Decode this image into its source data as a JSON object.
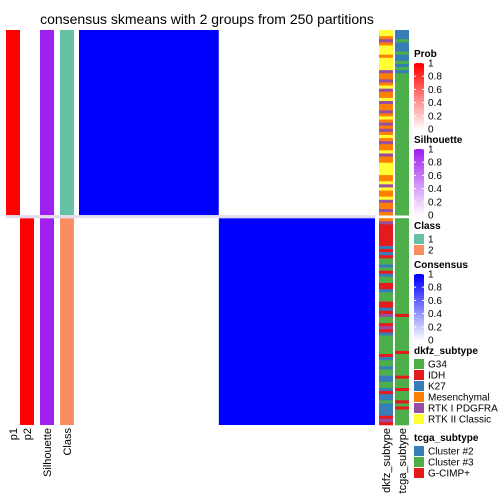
{
  "chart_data": {
    "type": "heatmap",
    "title": "consensus skmeans with 2 groups from 250 partitions",
    "group_sizes": [
      60,
      67
    ],
    "columns": {
      "p1": "p1",
      "p2": "p2",
      "silhouette": "Silhouette",
      "class": "Class",
      "dkfz": "dkfz_subtype",
      "tcga": "tcga_subtype"
    },
    "annotations": {
      "p1_by_group": [
        1,
        0
      ],
      "p2_by_group": [
        0,
        1
      ],
      "silhouette_by_group": [
        1,
        1
      ],
      "class_by_group": [
        1,
        2
      ],
      "consensus_within": 1,
      "consensus_between": 0,
      "dkfz_subtype": [
        "RTK II Classic",
        "RTK II Classic",
        "Mesenchymal",
        "RTK I PDGFRA",
        "Mesenchymal",
        "RTK II Classic",
        "RTK II Classic",
        "RTK II Classic",
        "Mesenchymal",
        "RTK II Classic",
        "RTK II Classic",
        "RTK II Classic",
        "RTK II Classic",
        "RTK I PDGFRA",
        "Mesenchymal",
        "Mesenchymal",
        "RTK I PDGFRA",
        "Mesenchymal",
        "RTK II Classic",
        "RTK I PDGFRA",
        "Mesenchymal",
        "Mesenchymal",
        "RTK II Classic",
        "RTK I PDGFRA",
        "Mesenchymal",
        "Mesenchymal",
        "RTK I PDGFRA",
        "Mesenchymal",
        "RTK II Classic",
        "Mesenchymal",
        "RTK I PDGFRA",
        "Mesenchymal",
        "RTK I PDGFRA",
        "Mesenchymal",
        "RTK II Classic",
        "Mesenchymal",
        "RTK I PDGFRA",
        "Mesenchymal",
        "Mesenchymal",
        "RTK II Classic",
        "RTK I PDGFRA",
        "Mesenchymal",
        "Mesenchymal",
        "RTK II Classic",
        "RTK II Classic",
        "RTK II Classic",
        "RTK II Classic",
        "Mesenchymal",
        "Mesenchymal",
        "RTK II Classic",
        "RTK I PDGFRA",
        "RTK II Classic",
        "Mesenchymal",
        "Mesenchymal",
        "RTK II Classic",
        "RTK I PDGFRA",
        "Mesenchymal",
        "Mesenchymal",
        "RTK I PDGFRA",
        "Mesenchymal",
        "Mesenchymal",
        "RTK I PDGFRA",
        "IDH",
        "IDH",
        "IDH",
        "IDH",
        "IDH",
        "IDH",
        "IDH",
        "K27",
        "IDH",
        "K27",
        "IDH",
        "G34",
        "G34",
        "K27",
        "G34",
        "IDH",
        "K27",
        "G34",
        "G34",
        "IDH",
        "IDH",
        "K27",
        "G34",
        "G34",
        "G34",
        "IDH",
        "IDH",
        "K27",
        "IDH",
        "RTK I PDGFRA",
        "G34",
        "G34",
        "IDH",
        "RTK I PDGFRA",
        "IDH",
        "K27",
        "G34",
        "G34",
        "G34",
        "G34",
        "G34",
        "G34",
        "IDH",
        "K27",
        "G34",
        "G34",
        "K27",
        "G34",
        "G34",
        "K27",
        "K27",
        "G34",
        "G34",
        "K27",
        "IDH",
        "K27",
        "K27",
        "G34",
        "K27",
        "K27",
        "K27",
        "K27",
        "IDH",
        "RTK I PDGFRA",
        "IDH"
      ],
      "tcga_subtype": [
        "Cluster #2",
        "Cluster #2",
        "Cluster #2",
        "Cluster #3",
        "Cluster #2",
        "Cluster #2",
        "Cluster #2",
        "Cluster #3",
        "Cluster #2",
        "Cluster #2",
        "Cluster #3",
        "Cluster #2",
        "Cluster #3",
        "Cluster #2",
        "Cluster #3",
        "Cluster #3",
        "Cluster #3",
        "Cluster #3",
        "Cluster #3",
        "Cluster #3",
        "Cluster #3",
        "Cluster #3",
        "Cluster #3",
        "Cluster #3",
        "Cluster #3",
        "Cluster #3",
        "Cluster #3",
        "Cluster #3",
        "Cluster #3",
        "Cluster #3",
        "Cluster #3",
        "Cluster #3",
        "Cluster #3",
        "Cluster #3",
        "Cluster #3",
        "Cluster #3",
        "Cluster #3",
        "Cluster #3",
        "Cluster #3",
        "Cluster #3",
        "Cluster #3",
        "Cluster #3",
        "Cluster #3",
        "Cluster #3",
        "Cluster #3",
        "Cluster #3",
        "Cluster #3",
        "Cluster #3",
        "Cluster #3",
        "Cluster #3",
        "Cluster #3",
        "Cluster #3",
        "Cluster #3",
        "Cluster #3",
        "Cluster #3",
        "Cluster #3",
        "Cluster #3",
        "Cluster #3",
        "Cluster #3",
        "Cluster #3",
        "Cluster #3",
        "Cluster #3",
        "Cluster #3",
        "Cluster #3",
        "Cluster #3",
        "Cluster #3",
        "Cluster #3",
        "Cluster #3",
        "Cluster #3",
        "Cluster #3",
        "Cluster #3",
        "Cluster #3",
        "Cluster #3",
        "Cluster #3",
        "Cluster #3",
        "Cluster #3",
        "Cluster #3",
        "Cluster #3",
        "Cluster #3",
        "Cluster #3",
        "Cluster #3",
        "Cluster #3",
        "Cluster #3",
        "Cluster #3",
        "Cluster #3",
        "Cluster #3",
        "Cluster #3",
        "Cluster #3",
        "Cluster #3",
        "Cluster #3",
        "Cluster #3",
        "G-CIMP+",
        "Cluster #3",
        "Cluster #3",
        "Cluster #3",
        "Cluster #3",
        "Cluster #3",
        "Cluster #3",
        "Cluster #3",
        "Cluster #3",
        "Cluster #3",
        "Cluster #3",
        "Cluster #3",
        "G-CIMP+",
        "Cluster #3",
        "Cluster #3",
        "Cluster #3",
        "Cluster #3",
        "Cluster #3",
        "Cluster #3",
        "Cluster #3",
        "G-CIMP+",
        "Cluster #3",
        "Cluster #3",
        "Cluster #3",
        "G-CIMP+",
        "Cluster #3",
        "Cluster #3",
        "Cluster #3",
        "G-CIMP+",
        "Cluster #3",
        "G-CIMP+",
        "Cluster #3",
        "Cluster #3",
        "Cluster #3",
        "Cluster #3",
        "Cluster #3"
      ]
    },
    "legends": [
      {
        "title": "Prob",
        "type": "continuous",
        "ticks": [
          "1",
          "0.8",
          "0.6",
          "0.4",
          "0.2",
          "0"
        ],
        "colors": [
          "#ff0000",
          "#ffffff"
        ]
      },
      {
        "title": "Silhouette",
        "type": "continuous",
        "ticks": [
          "1",
          "0.8",
          "0.6",
          "0.4",
          "0.2",
          "0"
        ],
        "colors": [
          "#a020f0",
          "#ffffff"
        ]
      },
      {
        "title": "Class",
        "type": "discrete",
        "items": [
          {
            "label": "1",
            "color": "#66c2a5"
          },
          {
            "label": "2",
            "color": "#fc8d62"
          }
        ]
      },
      {
        "title": "Consensus",
        "type": "continuous",
        "ticks": [
          "1",
          "0.8",
          "0.6",
          "0.4",
          "0.2",
          "0"
        ],
        "colors": [
          "#0000ff",
          "#ffffff"
        ]
      },
      {
        "title": "dkfz_subtype",
        "type": "discrete",
        "items": [
          {
            "label": "G34",
            "color": "#4daf4a"
          },
          {
            "label": "IDH",
            "color": "#e41a1c"
          },
          {
            "label": "K27",
            "color": "#377eb8"
          },
          {
            "label": "Mesenchymal",
            "color": "#ff7f00"
          },
          {
            "label": "RTK I PDGFRA",
            "color": "#984ea3"
          },
          {
            "label": "RTK II Classic",
            "color": "#ffff33"
          }
        ]
      },
      {
        "title": "tcga_subtype",
        "type": "discrete",
        "items": [
          {
            "label": "Cluster #2",
            "color": "#377eb8"
          },
          {
            "label": "Cluster #3",
            "color": "#4daf4a"
          },
          {
            "label": "G-CIMP+",
            "color": "#e41a1c"
          }
        ]
      }
    ]
  }
}
